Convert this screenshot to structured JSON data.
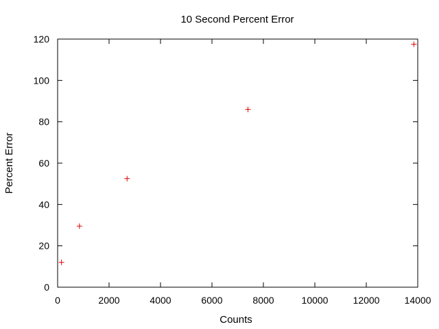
{
  "chart_data": {
    "type": "scatter",
    "title": "10 Second Percent Error",
    "xlabel": "Counts",
    "ylabel": "Percent Error",
    "xlim": [
      0,
      14000
    ],
    "ylim": [
      0,
      120
    ],
    "xticks": [
      0,
      2000,
      4000,
      6000,
      8000,
      10000,
      12000,
      14000
    ],
    "yticks": [
      0,
      20,
      40,
      60,
      80,
      100,
      120
    ],
    "grid": false,
    "marker": "+",
    "marker_color": "#e00000",
    "points": [
      {
        "x": 150,
        "y": 12
      },
      {
        "x": 850,
        "y": 29.5
      },
      {
        "x": 2700,
        "y": 52.5
      },
      {
        "x": 7400,
        "y": 86
      },
      {
        "x": 13850,
        "y": 117.5
      }
    ]
  }
}
